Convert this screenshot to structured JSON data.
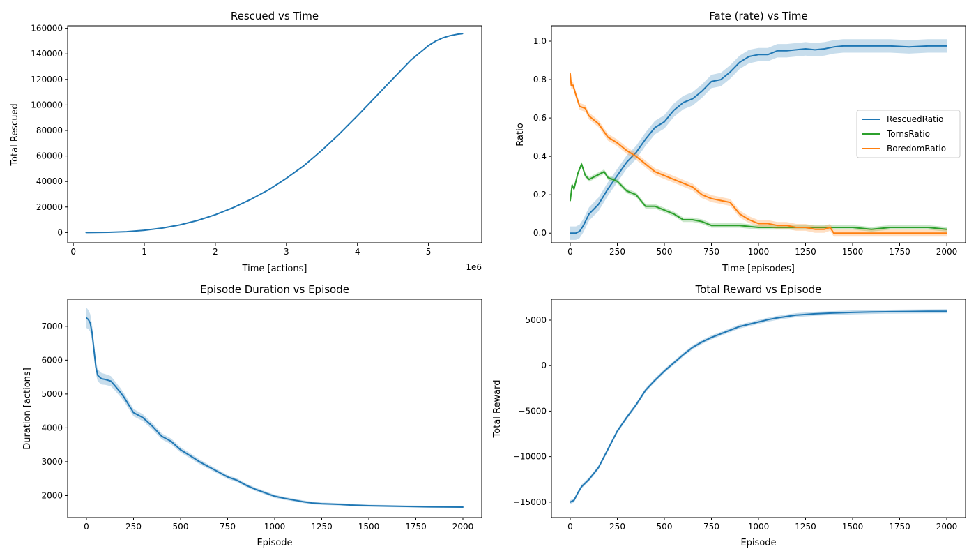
{
  "chart_data": [
    {
      "id": "rescued",
      "type": "line",
      "title": "Rescued vs Time",
      "xlabel": "Time [actions]",
      "ylabel": "Total Rescued",
      "offset_label": "1e6",
      "xlim": [
        -0.08,
        5.75
      ],
      "ylim": [
        -8000,
        162000
      ],
      "xticks": [
        0,
        1,
        2,
        3,
        4,
        5
      ],
      "yticks": [
        0,
        20000,
        40000,
        60000,
        80000,
        100000,
        120000,
        140000,
        160000
      ],
      "grid": false,
      "series": [
        {
          "color": "#1f77b4",
          "x": [
            0.18,
            0.5,
            0.75,
            1.0,
            1.25,
            1.5,
            1.75,
            2.0,
            2.25,
            2.5,
            2.75,
            3.0,
            3.25,
            3.5,
            3.75,
            4.0,
            4.25,
            4.5,
            4.75,
            5.0,
            5.1,
            5.2,
            5.3,
            5.4,
            5.48
          ],
          "y": [
            0,
            200,
            700,
            1800,
            3500,
            6000,
            9500,
            14000,
            19500,
            26000,
            33500,
            42500,
            52500,
            64500,
            77500,
            91500,
            106000,
            120500,
            135000,
            146500,
            150000,
            152500,
            154200,
            155300,
            155800
          ],
          "band": null
        }
      ]
    },
    {
      "id": "fate",
      "type": "line",
      "title": "Fate (rate) vs Time",
      "xlabel": "Time [episodes]",
      "ylabel": "Ratio",
      "xlim": [
        -100,
        2100
      ],
      "ylim": [
        -0.05,
        1.08
      ],
      "xticks": [
        0,
        250,
        500,
        750,
        1000,
        1250,
        1500,
        1750,
        2000
      ],
      "yticks": [
        0.0,
        0.2,
        0.4,
        0.6,
        0.8,
        1.0
      ],
      "yticklabels": [
        "0.0",
        "0.2",
        "0.4",
        "0.6",
        "0.8",
        "1.0"
      ],
      "grid": false,
      "legend": {
        "position": "center-right",
        "entries": [
          "RescuedRatio",
          "TornsRatio",
          "BoredomRatio"
        ]
      },
      "series": [
        {
          "name": "RescuedRatio",
          "color": "#1f77b4",
          "x": [
            0,
            30,
            50,
            70,
            100,
            150,
            200,
            250,
            300,
            350,
            400,
            450,
            500,
            550,
            600,
            650,
            700,
            750,
            800,
            850,
            900,
            950,
            1000,
            1050,
            1100,
            1150,
            1200,
            1250,
            1300,
            1350,
            1400,
            1450,
            1500,
            1600,
            1700,
            1800,
            1900,
            2000
          ],
          "y": [
            0.0,
            0.0,
            0.01,
            0.04,
            0.1,
            0.15,
            0.23,
            0.3,
            0.37,
            0.42,
            0.49,
            0.55,
            0.58,
            0.64,
            0.68,
            0.7,
            0.74,
            0.79,
            0.8,
            0.84,
            0.89,
            0.92,
            0.93,
            0.93,
            0.95,
            0.95,
            0.955,
            0.96,
            0.955,
            0.96,
            0.97,
            0.975,
            0.975,
            0.975,
            0.975,
            0.97,
            0.975,
            0.975
          ],
          "band": 0.035
        },
        {
          "name": "TornsRatio",
          "color": "#2ca02c",
          "x": [
            0,
            10,
            20,
            40,
            60,
            80,
            100,
            140,
            180,
            200,
            250,
            300,
            350,
            400,
            450,
            500,
            550,
            600,
            650,
            700,
            750,
            800,
            850,
            900,
            1000,
            1100,
            1200,
            1300,
            1400,
            1500,
            1600,
            1700,
            1800,
            1900,
            2000
          ],
          "y": [
            0.17,
            0.25,
            0.23,
            0.31,
            0.36,
            0.3,
            0.28,
            0.3,
            0.32,
            0.29,
            0.27,
            0.22,
            0.2,
            0.14,
            0.14,
            0.12,
            0.1,
            0.07,
            0.07,
            0.06,
            0.04,
            0.04,
            0.04,
            0.04,
            0.03,
            0.03,
            0.03,
            0.03,
            0.03,
            0.03,
            0.02,
            0.03,
            0.03,
            0.03,
            0.02
          ],
          "band": 0.012
        },
        {
          "name": "BoredomRatio",
          "color": "#ff7f0e",
          "x": [
            0,
            5,
            15,
            30,
            50,
            80,
            100,
            150,
            200,
            250,
            300,
            350,
            400,
            450,
            500,
            550,
            600,
            650,
            700,
            750,
            800,
            850,
            900,
            950,
            1000,
            1050,
            1100,
            1150,
            1200,
            1250,
            1300,
            1350,
            1380,
            1400,
            1500,
            1600,
            1700,
            1800,
            1900,
            2000
          ],
          "y": [
            0.83,
            0.77,
            0.77,
            0.72,
            0.66,
            0.65,
            0.61,
            0.57,
            0.5,
            0.47,
            0.43,
            0.4,
            0.36,
            0.32,
            0.3,
            0.28,
            0.26,
            0.24,
            0.2,
            0.18,
            0.17,
            0.16,
            0.1,
            0.07,
            0.05,
            0.05,
            0.04,
            0.04,
            0.03,
            0.03,
            0.02,
            0.02,
            0.03,
            0.0,
            0.0,
            0.0,
            0.0,
            0.0,
            0.0,
            0.0
          ],
          "band": 0.018
        }
      ]
    },
    {
      "id": "duration",
      "type": "line",
      "title": "Episode Duration vs Episode",
      "xlabel": "Episode",
      "ylabel": "Duration [actions]",
      "xlim": [
        -100,
        2100
      ],
      "ylim": [
        1350,
        7800
      ],
      "xticks": [
        0,
        250,
        500,
        750,
        1000,
        1250,
        1500,
        1750,
        2000
      ],
      "yticks": [
        2000,
        3000,
        4000,
        5000,
        6000,
        7000
      ],
      "grid": false,
      "series": [
        {
          "color": "#1f77b4",
          "x": [
            0,
            10,
            20,
            30,
            40,
            50,
            60,
            80,
            100,
            130,
            150,
            180,
            200,
            250,
            300,
            350,
            400,
            450,
            500,
            550,
            600,
            650,
            700,
            750,
            800,
            850,
            900,
            950,
            1000,
            1050,
            1100,
            1150,
            1200,
            1250,
            1300,
            1350,
            1400,
            1450,
            1500,
            1600,
            1700,
            1800,
            1900,
            2000
          ],
          "y": [
            7250,
            7200,
            7100,
            6800,
            6300,
            5800,
            5550,
            5450,
            5430,
            5380,
            5250,
            5050,
            4900,
            4450,
            4300,
            4050,
            3750,
            3600,
            3350,
            3180,
            3000,
            2850,
            2700,
            2550,
            2450,
            2300,
            2180,
            2080,
            1980,
            1920,
            1870,
            1820,
            1780,
            1760,
            1750,
            1740,
            1720,
            1710,
            1700,
            1690,
            1680,
            1670,
            1665,
            1660
          ],
          "band": [
            300,
            280,
            260,
            240,
            220,
            200,
            180,
            170,
            160,
            150,
            140,
            130,
            120,
            110,
            100,
            95,
            90,
            85,
            80,
            75,
            70,
            65,
            60,
            58,
            55,
            52,
            50,
            48,
            46,
            44,
            42,
            40,
            38,
            36,
            35,
            34,
            33,
            32,
            31,
            30,
            30,
            30,
            30,
            30
          ]
        }
      ]
    },
    {
      "id": "reward",
      "type": "line",
      "title": "Total Reward vs Episode",
      "xlabel": "Episode",
      "ylabel": "Total Reward",
      "xlim": [
        -100,
        2100
      ],
      "ylim": [
        -16700,
        7300
      ],
      "xticks": [
        0,
        250,
        500,
        750,
        1000,
        1250,
        1500,
        1750,
        2000
      ],
      "yticks": [
        -15000,
        -10000,
        -5000,
        0,
        5000
      ],
      "yticklabels": [
        "−15000",
        "−10000",
        "−5000",
        "0",
        "5000"
      ],
      "grid": false,
      "series": [
        {
          "color": "#1f77b4",
          "x": [
            0,
            20,
            40,
            60,
            100,
            150,
            200,
            250,
            300,
            350,
            400,
            450,
            500,
            550,
            600,
            650,
            700,
            750,
            800,
            850,
            900,
            950,
            1000,
            1050,
            1100,
            1150,
            1200,
            1300,
            1400,
            1500,
            1600,
            1700,
            1800,
            1900,
            2000
          ],
          "y": [
            -15000,
            -14800,
            -14000,
            -13300,
            -12500,
            -11200,
            -9200,
            -7200,
            -5700,
            -4300,
            -2700,
            -1600,
            -600,
            300,
            1200,
            2000,
            2600,
            3100,
            3500,
            3900,
            4300,
            4550,
            4800,
            5050,
            5250,
            5400,
            5550,
            5700,
            5780,
            5850,
            5900,
            5930,
            5950,
            5970,
            5980
          ],
          "band": 220
        }
      ]
    }
  ]
}
